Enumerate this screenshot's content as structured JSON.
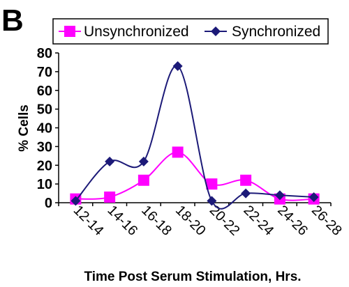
{
  "panel_label": "B",
  "colors": {
    "unsynchronized": "#ff00ff",
    "synchronized": "#1c1a78",
    "axis": "#000000"
  },
  "chart_data": {
    "type": "line",
    "title": "",
    "xlabel": "Time Post Serum Stimulation, Hrs.",
    "ylabel": "% Cells",
    "ylim": [
      0,
      80
    ],
    "yticks": [
      0,
      10,
      20,
      30,
      40,
      50,
      60,
      70,
      80
    ],
    "categories": [
      "12-14",
      "14-16",
      "16-18",
      "18-20",
      "20-22",
      "22-24",
      "24-26",
      "26-28"
    ],
    "grid": false,
    "legend_position": "top",
    "series": [
      {
        "name": "Unsynchronized",
        "marker": "square",
        "color": "#ff00ff",
        "values": [
          2,
          3,
          12,
          27,
          10,
          12,
          2,
          2
        ]
      },
      {
        "name": "Synchronized",
        "marker": "diamond",
        "color": "#1c1a78",
        "values": [
          1,
          22,
          22,
          73,
          1,
          5,
          4,
          3
        ]
      }
    ]
  }
}
